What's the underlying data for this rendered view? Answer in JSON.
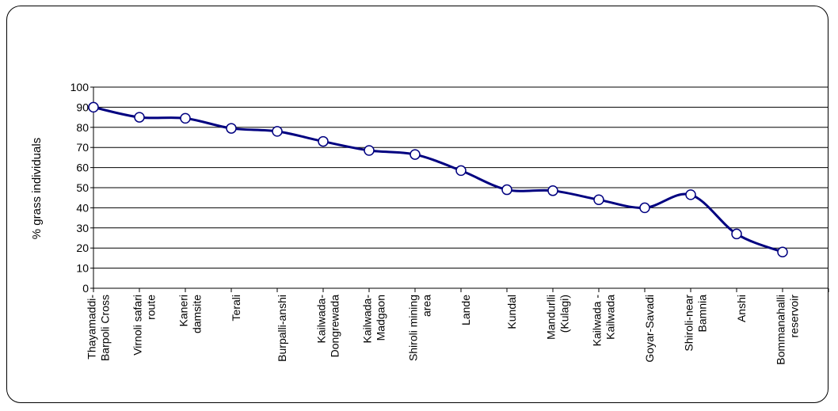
{
  "chart_data": {
    "type": "line",
    "title": "",
    "xlabel": "",
    "ylabel": "% grass individuals",
    "ylim": [
      0,
      100
    ],
    "ytick_step": 10,
    "grid": "horizontal",
    "legend": "none",
    "line_color": "#000080",
    "marker_fill": "#ffffff",
    "categories": [
      [
        "Thayamaddi-",
        "Barpoli Cross"
      ],
      [
        "Virnoli safari",
        "route"
      ],
      [
        "Kaneri",
        "damsite"
      ],
      [
        "Terali"
      ],
      [
        "Burpalli-anshi"
      ],
      [
        "Kailwada-",
        "Dongrewada"
      ],
      [
        "Kailwada-",
        "Madgaon"
      ],
      [
        "Shiroli mining",
        "area"
      ],
      [
        "Lande"
      ],
      [
        "Kundal"
      ],
      [
        "Mandurlli",
        "(Kulagi)"
      ],
      [
        "Kailwada -",
        "Kailwada"
      ],
      [
        "Goyar-Savadi"
      ],
      [
        "Shiroli-near",
        "Bamnia"
      ],
      [
        "Anshi"
      ],
      [
        "Bommanahalli",
        "reservoir"
      ]
    ],
    "series": [
      {
        "values": [
          90,
          85,
          84.5,
          79.5,
          78,
          73,
          68.5,
          66.5,
          58.5,
          49,
          48.5,
          44,
          40,
          46.5,
          27,
          18
        ]
      }
    ]
  }
}
